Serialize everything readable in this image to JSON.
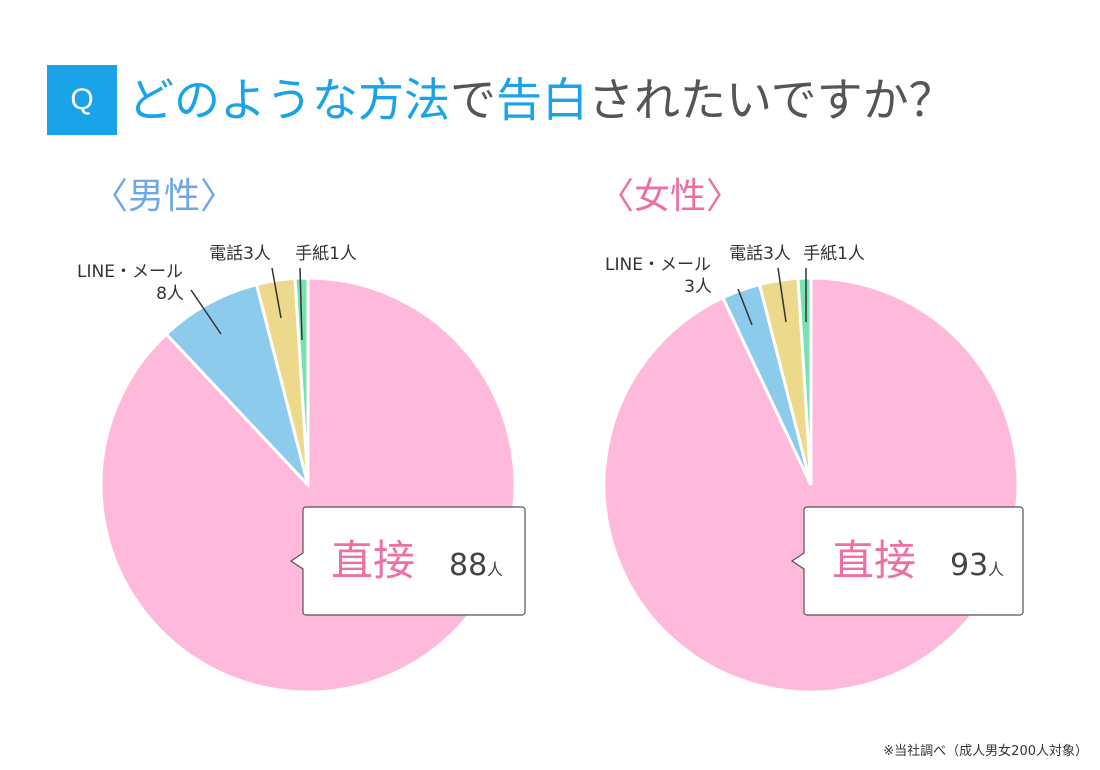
{
  "question": {
    "badge": "Q",
    "parts": [
      {
        "text": "どのような方法",
        "highlight": true
      },
      {
        "text": "で",
        "highlight": false
      },
      {
        "text": "告白",
        "highlight": true
      },
      {
        "text": "されたいですか？",
        "highlight": false
      }
    ]
  },
  "footnote": "※当社調べ（成人男女200人対象）",
  "colors": {
    "accent": "#1aa3e8",
    "direct": "#ffbadb",
    "line_mail": "#8ccbeb",
    "phone": "#ecd98c",
    "letter": "#7be0b4",
    "male_label": "#6fa8e6",
    "female_label": "#ee6fa6"
  },
  "chart_data": [
    {
      "type": "pie",
      "title": "〈男性〉",
      "slices": [
        {
          "label": "直接",
          "value": 88,
          "unit": "人"
        },
        {
          "label": "LINE・メール",
          "value": 8,
          "unit": "人"
        },
        {
          "label": "電話",
          "value": 3,
          "unit": "人"
        },
        {
          "label": "手紙",
          "value": 1,
          "unit": "人"
        }
      ]
    },
    {
      "type": "pie",
      "title": "〈女性〉",
      "slices": [
        {
          "label": "直接",
          "value": 93,
          "unit": "人"
        },
        {
          "label": "LINE・メール",
          "value": 3,
          "unit": "人"
        },
        {
          "label": "電話",
          "value": 3,
          "unit": "人"
        },
        {
          "label": "手紙",
          "value": 1,
          "unit": "人"
        }
      ]
    }
  ]
}
